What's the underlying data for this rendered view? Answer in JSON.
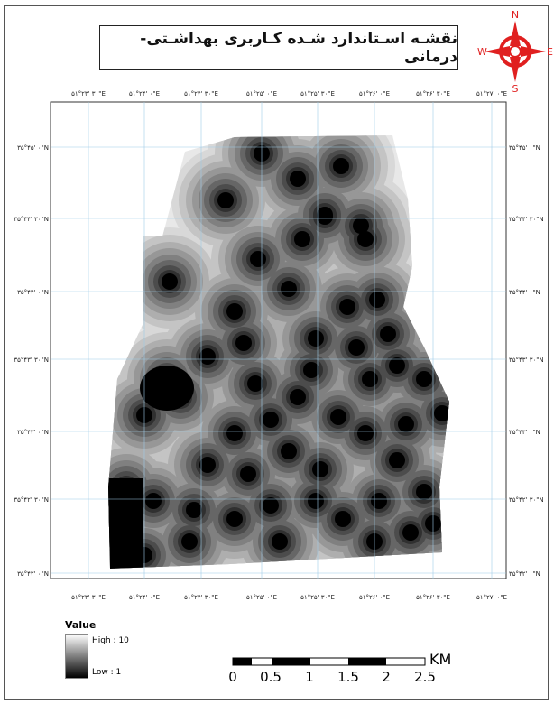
{
  "map": {
    "title": "نقشـه اسـتاندارد شـده کـاربری بهداشـتی- درمانی"
  },
  "north_arrow": {
    "n": "N",
    "s": "S",
    "e": "E",
    "w": "W"
  },
  "graticule": {
    "top_labels": [
      "۵۱°۲۳' ۳۰\"E",
      "۵۱°۲۴' ۰\"E",
      "۵۱°۲۴' ۳۰\"E",
      "۵۱°۲۵' ۰\"E",
      "۵۱°۲۵' ۳۰\"E",
      "۵۱°۲۶' ۰\"E",
      "۵۱°۲۶' ۳۰\"E",
      "۵۱°۲۷' ۰\"E"
    ],
    "bottom_labels": [
      "۵۱°۲۳' ۳۰\"E",
      "۵۱°۲۴' ۰\"E",
      "۵۱°۲۴' ۳۰\"E",
      "۵۱°۲۵' ۰\"E",
      "۵۱°۲۵' ۳۰\"E",
      "۵۱°۲۶' ۰\"E",
      "۵۱°۲۶' ۳۰\"E",
      "۵۱°۲۷' ۰\"E"
    ],
    "left_labels": [
      "۳۵°۴۵' ۰\"N",
      "۳۵°۴۴' ۳۰\"N",
      "۳۵°۴۴' ۰\"N",
      "۳۵°۴۳' ۳۰\"N",
      "۳۵°۴۳' ۰\"N",
      "۳۵°۴۲' ۳۰\"N",
      "۳۵°۴۲' ۰\"N"
    ],
    "right_labels": [
      "۳۵°۴۵' ۰\"N",
      "۳۵°۴۴' ۳۰\"N",
      "۳۵°۴۴' ۰\"N",
      "۳۵°۴۳' ۳۰\"N",
      "۳۵°۴۳' ۰\"N",
      "۳۵°۴۲' ۳۰\"N",
      "۳۵°۴۲' ۰\"N"
    ]
  },
  "legend": {
    "title": "Value",
    "high_label": "High : 10",
    "low_label": "Low : 1",
    "ramp_colors": [
      "#ffffff",
      "#000000"
    ]
  },
  "scale_bar": {
    "unit": "KM",
    "labels": [
      "0",
      "0.5",
      "1",
      "1.5",
      "2",
      "2.5"
    ]
  },
  "colors": {
    "north_arrow": "#e02020",
    "graticule": "#9ecbe8"
  }
}
